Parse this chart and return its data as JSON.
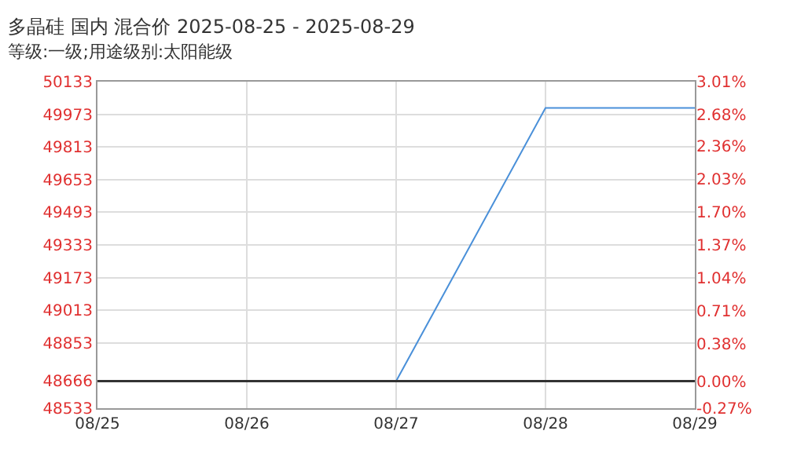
{
  "chart_data": {
    "type": "line",
    "title": "多晶硅 国内 混合价 2025-08-25 - 2025-08-29",
    "subtitle": "等级:一级;用途级别:太阳能级",
    "categories": [
      "08/25",
      "08/26",
      "08/27",
      "08/28",
      "08/29"
    ],
    "series": [
      {
        "color": "#4a90d9",
        "values": [
          null,
          null,
          48666,
          50004,
          50004
        ]
      }
    ],
    "ylim": [
      48533,
      50133
    ],
    "yticks": [
      48533,
      48666,
      48853,
      49013,
      49173,
      49333,
      49493,
      49653,
      49813,
      49973,
      50133
    ],
    "y2lim": [
      -0.27,
      3.01
    ],
    "y2ticks": [
      {
        "value": -0.27,
        "label": "-0.27%"
      },
      {
        "value": 0.0,
        "label": "0.00%"
      },
      {
        "value": 0.38,
        "label": "0.38%"
      },
      {
        "value": 0.71,
        "label": "0.71%"
      },
      {
        "value": 1.04,
        "label": "1.04%"
      },
      {
        "value": 1.37,
        "label": "1.37%"
      },
      {
        "value": 1.7,
        "label": "1.70%"
      },
      {
        "value": 2.03,
        "label": "2.03%"
      },
      {
        "value": 2.36,
        "label": "2.36%"
      },
      {
        "value": 2.68,
        "label": "2.68%"
      },
      {
        "value": 3.01,
        "label": "3.01%"
      }
    ],
    "ref_lines": [
      {
        "axis": "y",
        "value": 48666,
        "color": "#333333"
      }
    ],
    "grid": true,
    "legend": false,
    "marker": "none",
    "line_style": "solid"
  }
}
